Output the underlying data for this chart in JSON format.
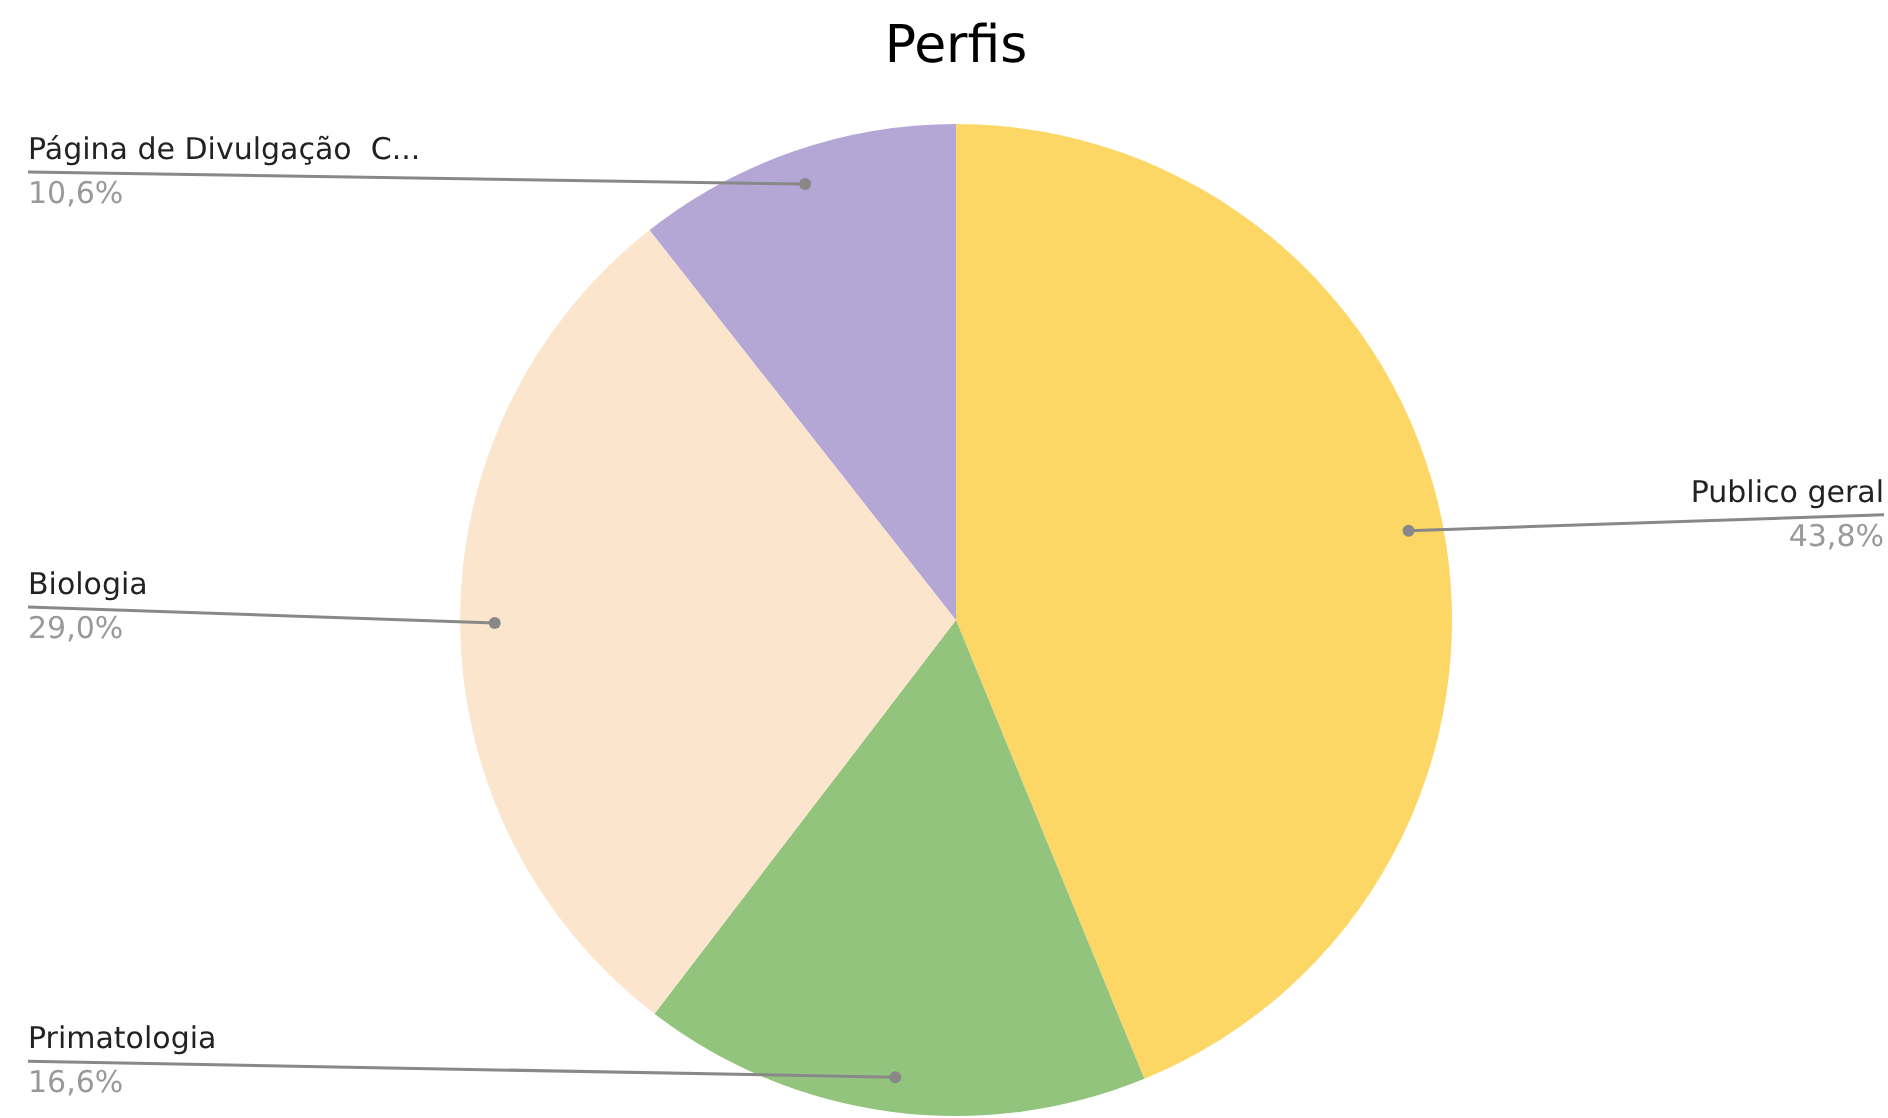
{
  "chart_data": {
    "type": "pie",
    "title": "Perfis",
    "categories": [
      "Publico geral",
      "Primatologia",
      "Biologia",
      "Página de Divulgação  C..."
    ],
    "values": [
      43.8,
      16.6,
      29.0,
      10.6
    ],
    "colors": [
      "#fdd766",
      "#93c47d",
      "#fce5cd",
      "#b4a7d6"
    ],
    "value_labels": [
      "43,8%",
      "16,6%",
      "29,0%",
      "10,6%"
    ]
  }
}
